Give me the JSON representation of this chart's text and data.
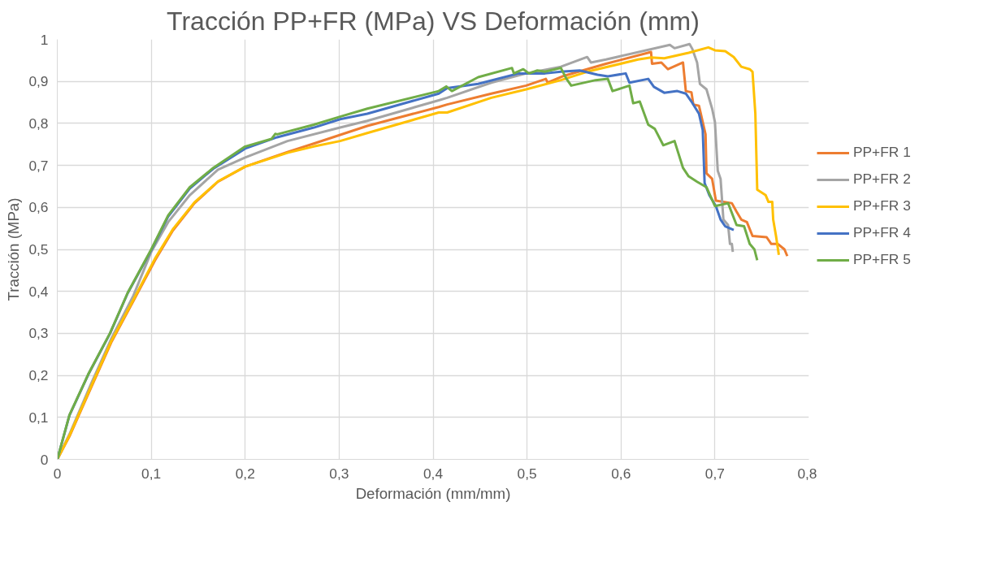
{
  "chart_data": {
    "type": "line",
    "title": "Tracción PP+FR (MPa) VS Deformación (mm)",
    "xlabel": "Deformación (mm/mm)",
    "ylabel": "Tracción (MPa)",
    "xlim": [
      0,
      0.8
    ],
    "ylim": [
      0,
      1
    ],
    "grid": true,
    "legend": "right",
    "marker": "none",
    "line_style": "solid",
    "xticks": [
      0,
      {
        "value": 0.1,
        "label": "0,1"
      },
      {
        "value": 0.2,
        "label": "0,2"
      },
      {
        "value": 0.3,
        "label": "0,3"
      },
      {
        "value": 0.4,
        "label": "0,4"
      },
      {
        "value": 0.5,
        "label": "0,5"
      },
      {
        "value": 0.6,
        "label": "0,6"
      },
      {
        "value": 0.7,
        "label": "0,7"
      },
      {
        "value": 0.8,
        "label": "0,8"
      }
    ],
    "yticks": [
      0,
      {
        "value": 0.1,
        "label": "0,1"
      },
      {
        "value": 0.2,
        "label": "0,2"
      },
      {
        "value": 0.3,
        "label": "0,3"
      },
      {
        "value": 0.4,
        "label": "0,4"
      },
      {
        "value": 0.5,
        "label": "0,5"
      },
      {
        "value": 0.6,
        "label": "0,6"
      },
      {
        "value": 0.7,
        "label": "0,7"
      },
      {
        "value": 0.8,
        "label": "0,8"
      },
      {
        "value": 0.9,
        "label": "0,9"
      },
      1
    ],
    "series": [
      {
        "name": "PP+FR 1",
        "color": "#ed7d31",
        "x": [
          0,
          0.013,
          0.036,
          0.058,
          0.081,
          0.104,
          0.123,
          0.146,
          0.171,
          0.2,
          0.245,
          0.273,
          0.33,
          0.406,
          0.415,
          0.462,
          0.499,
          0.52,
          0.522,
          0.539,
          0.584,
          0.632,
          0.633,
          0.643,
          0.65,
          0.666,
          0.669,
          0.675,
          0.677,
          0.683,
          0.69,
          0.691,
          0.697,
          0.701,
          0.709,
          0.718,
          0.723,
          0.728,
          0.734,
          0.74,
          0.755,
          0.76,
          0.767,
          0.774,
          0.777
        ],
        "values": [
          0,
          0.055,
          0.171,
          0.281,
          0.377,
          0.474,
          0.545,
          0.61,
          0.661,
          0.697,
          0.732,
          0.752,
          0.794,
          0.839,
          0.845,
          0.871,
          0.89,
          0.906,
          0.897,
          0.913,
          0.942,
          0.97,
          0.942,
          0.945,
          0.929,
          0.945,
          0.877,
          0.874,
          0.845,
          0.842,
          0.774,
          0.681,
          0.668,
          0.616,
          0.613,
          0.61,
          0.59,
          0.571,
          0.565,
          0.532,
          0.529,
          0.513,
          0.513,
          0.5,
          0.484
        ]
      },
      {
        "name": "PP+FR 2",
        "color": "#a5a5a5",
        "x": [
          0,
          0.013,
          0.036,
          0.058,
          0.081,
          0.1,
          0.118,
          0.141,
          0.171,
          0.2,
          0.245,
          0.301,
          0.33,
          0.406,
          0.415,
          0.462,
          0.499,
          0.536,
          0.564,
          0.568,
          0.584,
          0.652,
          0.657,
          0.673,
          0.676,
          0.681,
          0.684,
          0.691,
          0.697,
          0.7,
          0.703,
          0.706,
          0.709,
          0.714,
          0.716,
          0.718,
          0.719
        ],
        "values": [
          0,
          0.06,
          0.18,
          0.29,
          0.39,
          0.494,
          0.565,
          0.629,
          0.69,
          0.719,
          0.758,
          0.79,
          0.806,
          0.855,
          0.861,
          0.897,
          0.919,
          0.935,
          0.958,
          0.945,
          0.952,
          0.987,
          0.979,
          0.989,
          0.977,
          0.945,
          0.894,
          0.881,
          0.835,
          0.803,
          0.687,
          0.668,
          0.571,
          0.558,
          0.513,
          0.513,
          0.494
        ]
      },
      {
        "name": "PP+FR 3",
        "color": "#ffc000",
        "x": [
          0,
          0.013,
          0.036,
          0.058,
          0.081,
          0.104,
          0.123,
          0.146,
          0.171,
          0.2,
          0.245,
          0.273,
          0.301,
          0.33,
          0.406,
          0.415,
          0.462,
          0.499,
          0.536,
          0.564,
          0.618,
          0.632,
          0.646,
          0.672,
          0.693,
          0.7,
          0.711,
          0.72,
          0.728,
          0.737,
          0.74,
          0.743,
          0.745,
          0.754,
          0.757,
          0.761,
          0.762,
          0.765,
          0.768
        ],
        "values": [
          0,
          0.057,
          0.174,
          0.284,
          0.38,
          0.478,
          0.548,
          0.612,
          0.662,
          0.697,
          0.73,
          0.745,
          0.758,
          0.777,
          0.826,
          0.826,
          0.861,
          0.881,
          0.903,
          0.923,
          0.952,
          0.957,
          0.955,
          0.968,
          0.981,
          0.974,
          0.972,
          0.958,
          0.935,
          0.929,
          0.923,
          0.823,
          0.642,
          0.629,
          0.613,
          0.613,
          0.571,
          0.532,
          0.487
        ]
      },
      {
        "name": "PP+FR 4",
        "color": "#4472c4",
        "x": [
          0,
          0.013,
          0.033,
          0.056,
          0.075,
          0.1,
          0.118,
          0.141,
          0.166,
          0.2,
          0.234,
          0.273,
          0.301,
          0.33,
          0.406,
          0.415,
          0.448,
          0.491,
          0.519,
          0.536,
          0.556,
          0.575,
          0.586,
          0.605,
          0.609,
          0.629,
          0.635,
          0.646,
          0.66,
          0.669,
          0.675,
          0.683,
          0.687,
          0.689,
          0.694,
          0.701,
          0.706,
          0.711,
          0.72
        ],
        "values": [
          0,
          0.105,
          0.202,
          0.299,
          0.396,
          0.498,
          0.578,
          0.645,
          0.692,
          0.74,
          0.767,
          0.79,
          0.81,
          0.823,
          0.871,
          0.884,
          0.894,
          0.919,
          0.919,
          0.923,
          0.926,
          0.916,
          0.912,
          0.919,
          0.897,
          0.906,
          0.887,
          0.873,
          0.877,
          0.871,
          0.852,
          0.823,
          0.784,
          0.658,
          0.629,
          0.603,
          0.571,
          0.555,
          0.546
        ]
      },
      {
        "name": "PP+FR 5",
        "color": "#70ad47",
        "x": [
          0,
          0.013,
          0.033,
          0.056,
          0.075,
          0.1,
          0.118,
          0.141,
          0.166,
          0.2,
          0.228,
          0.232,
          0.234,
          0.273,
          0.301,
          0.33,
          0.406,
          0.414,
          0.42,
          0.448,
          0.484,
          0.486,
          0.496,
          0.502,
          0.511,
          0.519,
          0.536,
          0.542,
          0.547,
          0.573,
          0.586,
          0.591,
          0.609,
          0.613,
          0.62,
          0.629,
          0.636,
          0.645,
          0.657,
          0.666,
          0.672,
          0.681,
          0.691,
          0.7,
          0.714,
          0.723,
          0.731,
          0.737,
          0.742,
          0.745
        ],
        "values": [
          0,
          0.106,
          0.203,
          0.3,
          0.397,
          0.5,
          0.581,
          0.648,
          0.694,
          0.745,
          0.763,
          0.775,
          0.774,
          0.797,
          0.816,
          0.835,
          0.877,
          0.888,
          0.877,
          0.91,
          0.932,
          0.919,
          0.929,
          0.919,
          0.926,
          0.923,
          0.932,
          0.906,
          0.89,
          0.903,
          0.906,
          0.877,
          0.89,
          0.848,
          0.852,
          0.797,
          0.787,
          0.748,
          0.758,
          0.694,
          0.674,
          0.661,
          0.648,
          0.603,
          0.61,
          0.558,
          0.555,
          0.513,
          0.5,
          0.474
        ]
      }
    ]
  }
}
